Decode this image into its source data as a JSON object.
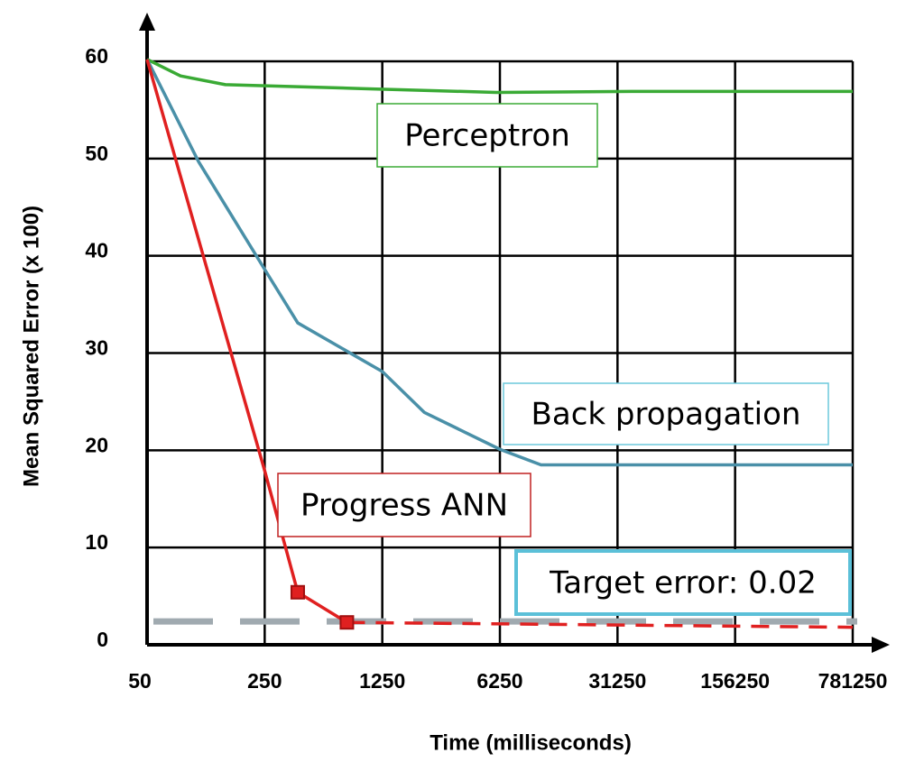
{
  "chart_data": {
    "type": "line",
    "x_label": "Time (milliseconds)",
    "y_label": "Mean Squared Error (x 100)",
    "xlim": [
      50,
      781250
    ],
    "xticks": [
      50,
      250,
      1250,
      6250,
      31250,
      156250,
      781250
    ],
    "xscale": "log",
    "ylim": [
      0,
      60
    ],
    "yticks": [
      0,
      10,
      20,
      30,
      40,
      50,
      60
    ],
    "grid": true,
    "series": [
      {
        "name": "Perceptron",
        "color": "#3aaa35",
        "x": [
          50,
          79,
          146,
          935,
          5950,
          37850,
          781250
        ],
        "values": [
          60.2,
          58.5,
          57.6,
          57.2,
          56.8,
          56.9,
          56.9
        ]
      },
      {
        "name": "Back propagation",
        "color": "#4a90a8",
        "x": [
          50,
          101,
          250,
          393,
          1250,
          2220,
          6250,
          10970,
          781250
        ],
        "values": [
          60.2,
          49.7,
          38.6,
          33.1,
          28.1,
          23.9,
          20.1,
          18.5,
          18.5
        ]
      },
      {
        "name": "Progress ANN",
        "color": "#e02020",
        "x": [
          50,
          250,
          393,
          770,
          781250
        ],
        "values": [
          60.2,
          17.9,
          5.4,
          2.3,
          1.8
        ],
        "markers": [
          2,
          3
        ],
        "dashed_after": 3
      }
    ],
    "reference_line": {
      "value": 2.4,
      "color": "#a0aab0"
    },
    "annotations": [
      {
        "text": "Perceptron",
        "color": "#3aaa35"
      },
      {
        "text": "Back propagation",
        "color": "#6cc8dc"
      },
      {
        "text": "Progress ANN",
        "color": "#c02020"
      },
      {
        "text": "Target error: 0.02",
        "color": "#5bc0d8"
      }
    ]
  }
}
